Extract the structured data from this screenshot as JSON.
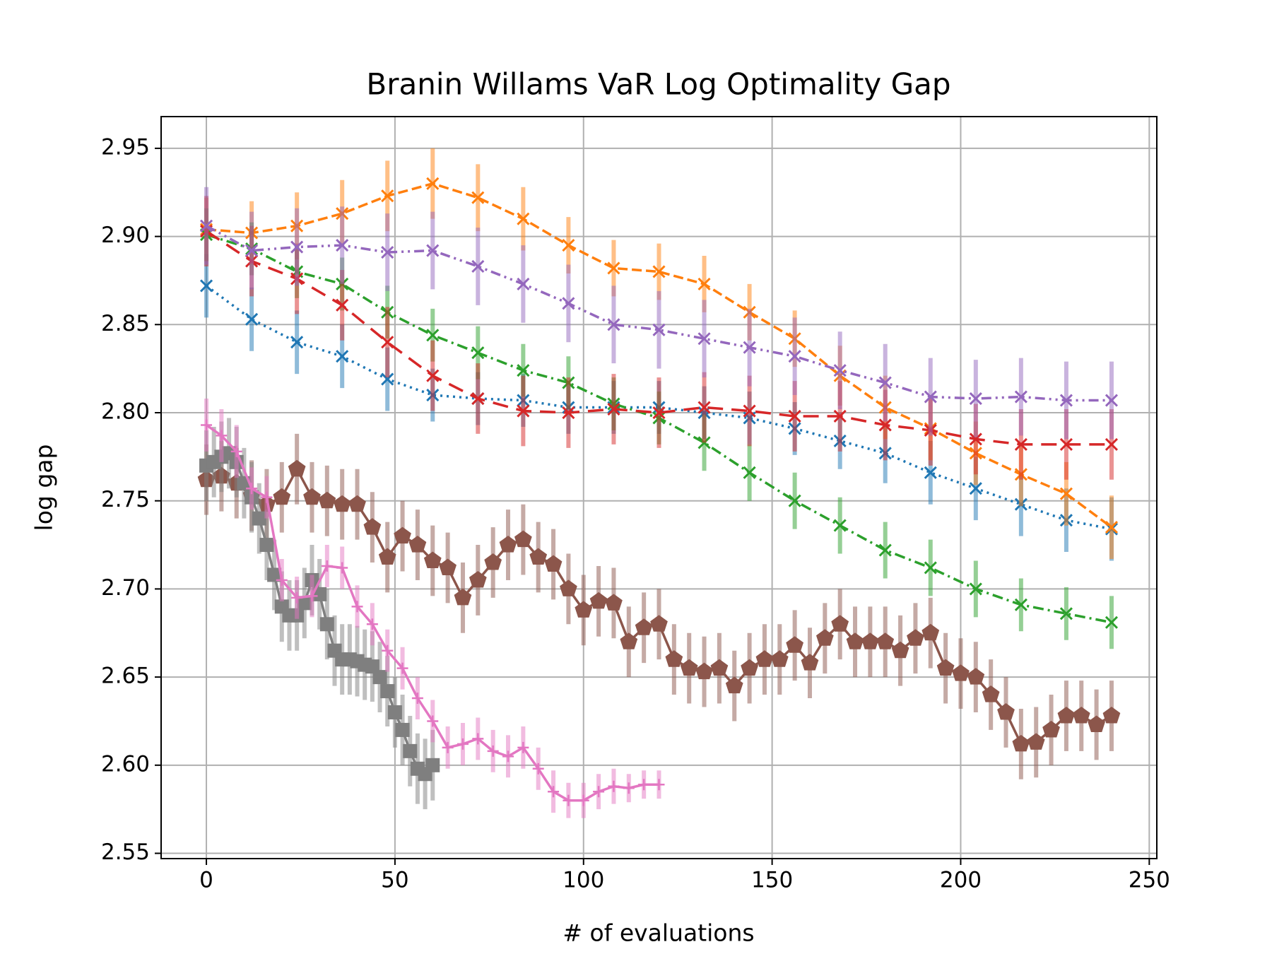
{
  "chart_data": {
    "type": "line",
    "title": "Branin Willams VaR Log Optimality Gap",
    "x_label": "# of evaluations",
    "y_label": "log gap",
    "xlim": [
      -12,
      252
    ],
    "ylim": [
      2.547,
      2.968
    ],
    "xticks": [
      0,
      50,
      100,
      150,
      200,
      250
    ],
    "yticks": [
      2.55,
      {
        "value": 2.6,
        "label": "2.60"
      },
      2.65,
      {
        "value": 2.7,
        "label": "2.70"
      },
      2.75,
      {
        "value": 2.8,
        "label": "2.80"
      },
      2.85,
      {
        "value": 2.9,
        "label": "2.90"
      },
      2.95
    ],
    "grid": true,
    "series": [
      {
        "color": "#1f77b4",
        "marker": "x",
        "linestyle": "dotted",
        "x": [
          0,
          12,
          24,
          36,
          48,
          60,
          72,
          84,
          96,
          108,
          120,
          132,
          144,
          156,
          168,
          180,
          192,
          204,
          216,
          228,
          240
        ],
        "values": [
          2.872,
          2.853,
          2.84,
          2.832,
          2.819,
          2.81,
          2.808,
          2.807,
          2.803,
          2.803,
          2.803,
          2.8,
          2.797,
          2.791,
          2.784,
          2.777,
          2.766,
          2.757,
          2.748,
          2.739,
          2.734
        ],
        "errors": [
          0.018,
          0.018,
          0.018,
          0.018,
          0.018,
          0.015,
          0.015,
          0.015,
          0.015,
          0.015,
          0.015,
          0.015,
          0.015,
          0.015,
          0.016,
          0.017,
          0.018,
          0.018,
          0.018,
          0.018,
          0.018
        ]
      },
      {
        "color": "#ff7f0e",
        "marker": "x",
        "linestyle": "dashed",
        "x": [
          0,
          12,
          24,
          36,
          48,
          60,
          72,
          84,
          96,
          108,
          120,
          132,
          144,
          156,
          168,
          180,
          192,
          204,
          216,
          228,
          240
        ],
        "values": [
          2.904,
          2.902,
          2.906,
          2.913,
          2.923,
          2.93,
          2.922,
          2.91,
          2.895,
          2.882,
          2.88,
          2.873,
          2.857,
          2.842,
          2.821,
          2.803,
          2.791,
          2.777,
          2.765,
          2.754,
          2.735
        ],
        "errors": [
          0.018,
          0.018,
          0.019,
          0.019,
          0.02,
          0.02,
          0.019,
          0.018,
          0.016,
          0.016,
          0.016,
          0.016,
          0.016,
          0.016,
          0.017,
          0.018,
          0.018,
          0.018,
          0.018,
          0.018,
          0.018
        ]
      },
      {
        "color": "#2ca02c",
        "marker": "x",
        "linestyle": "dashdot",
        "x": [
          0,
          12,
          24,
          36,
          48,
          60,
          72,
          84,
          96,
          108,
          120,
          132,
          144,
          156,
          168,
          180,
          192,
          204,
          216,
          228,
          240
        ],
        "values": [
          2.901,
          2.893,
          2.88,
          2.873,
          2.857,
          2.844,
          2.834,
          2.824,
          2.817,
          2.805,
          2.797,
          2.783,
          2.766,
          2.75,
          2.736,
          2.722,
          2.712,
          2.7,
          2.691,
          2.686,
          2.681
        ],
        "errors": [
          0.015,
          0.015,
          0.015,
          0.015,
          0.015,
          0.015,
          0.015,
          0.015,
          0.015,
          0.015,
          0.015,
          0.016,
          0.016,
          0.016,
          0.016,
          0.016,
          0.016,
          0.016,
          0.015,
          0.015,
          0.015
        ]
      },
      {
        "color": "#d62728",
        "marker": "x",
        "linestyle": "longdash",
        "x": [
          0,
          12,
          24,
          36,
          48,
          60,
          72,
          84,
          96,
          108,
          120,
          132,
          144,
          156,
          168,
          180,
          192,
          204,
          216,
          228,
          240
        ],
        "values": [
          2.903,
          2.886,
          2.876,
          2.861,
          2.84,
          2.821,
          2.808,
          2.801,
          2.8,
          2.802,
          2.8,
          2.803,
          2.801,
          2.798,
          2.798,
          2.793,
          2.79,
          2.785,
          2.782,
          2.782,
          2.782
        ],
        "errors": [
          0.02,
          0.02,
          0.02,
          0.02,
          0.02,
          0.02,
          0.02,
          0.02,
          0.02,
          0.02,
          0.02,
          0.02,
          0.02,
          0.02,
          0.02,
          0.02,
          0.02,
          0.02,
          0.02,
          0.02,
          0.02
        ]
      },
      {
        "color": "#9467bd",
        "marker": "x",
        "linestyle": "dashdotdot",
        "x": [
          0,
          12,
          24,
          36,
          48,
          60,
          72,
          84,
          96,
          108,
          120,
          132,
          144,
          156,
          168,
          180,
          192,
          204,
          216,
          228,
          240
        ],
        "values": [
          2.906,
          2.892,
          2.894,
          2.895,
          2.891,
          2.892,
          2.883,
          2.873,
          2.862,
          2.85,
          2.847,
          2.842,
          2.837,
          2.832,
          2.824,
          2.817,
          2.809,
          2.808,
          2.809,
          2.807,
          2.807
        ],
        "errors": [
          0.022,
          0.022,
          0.022,
          0.022,
          0.022,
          0.022,
          0.022,
          0.022,
          0.022,
          0.022,
          0.022,
          0.022,
          0.022,
          0.022,
          0.022,
          0.022,
          0.022,
          0.022,
          0.022,
          0.022,
          0.022
        ]
      },
      {
        "color": "#8c564b",
        "marker": "pentagon",
        "linestyle": "solid",
        "x": [
          0,
          4,
          8,
          12,
          16,
          20,
          24,
          28,
          32,
          36,
          40,
          44,
          48,
          52,
          56,
          60,
          64,
          68,
          72,
          76,
          80,
          84,
          88,
          92,
          96,
          100,
          104,
          108,
          112,
          116,
          120,
          124,
          128,
          132,
          136,
          140,
          144,
          148,
          152,
          156,
          160,
          164,
          168,
          172,
          176,
          180,
          184,
          188,
          192,
          196,
          200,
          204,
          208,
          212,
          216,
          220,
          224,
          228,
          232,
          236,
          240
        ],
        "values": [
          2.762,
          2.764,
          2.76,
          2.753,
          2.748,
          2.752,
          2.768,
          2.752,
          2.75,
          2.748,
          2.748,
          2.735,
          2.718,
          2.73,
          2.725,
          2.716,
          2.712,
          2.695,
          2.705,
          2.715,
          2.725,
          2.728,
          2.718,
          2.714,
          2.7,
          2.688,
          2.693,
          2.692,
          2.67,
          2.678,
          2.68,
          2.66,
          2.655,
          2.653,
          2.655,
          2.645,
          2.655,
          2.66,
          2.66,
          2.668,
          2.658,
          2.672,
          2.68,
          2.67,
          2.67,
          2.67,
          2.665,
          2.672,
          2.675,
          2.655,
          2.652,
          2.65,
          2.64,
          2.63,
          2.612,
          2.613,
          2.62,
          2.628,
          2.628,
          2.623,
          2.628
        ],
        "errors": [
          0.02,
          0.02,
          0.02,
          0.02,
          0.02,
          0.02,
          0.02,
          0.02,
          0.02,
          0.02,
          0.02,
          0.02,
          0.02,
          0.02,
          0.02,
          0.02,
          0.02,
          0.02,
          0.02,
          0.02,
          0.02,
          0.02,
          0.02,
          0.02,
          0.02,
          0.02,
          0.02,
          0.02,
          0.02,
          0.02,
          0.02,
          0.02,
          0.02,
          0.02,
          0.02,
          0.02,
          0.02,
          0.02,
          0.02,
          0.02,
          0.02,
          0.02,
          0.02,
          0.02,
          0.02,
          0.02,
          0.02,
          0.02,
          0.02,
          0.02,
          0.02,
          0.02,
          0.02,
          0.02,
          0.02,
          0.02,
          0.02,
          0.02,
          0.02,
          0.02,
          0.02
        ]
      },
      {
        "color": "#7f7f7f",
        "marker": "square",
        "linestyle": "solid",
        "x": [
          0,
          2,
          4,
          6,
          8,
          10,
          12,
          14,
          16,
          18,
          20,
          22,
          24,
          26,
          28,
          30,
          32,
          34,
          36,
          38,
          40,
          42,
          44,
          46,
          48,
          50,
          52,
          54,
          56,
          58,
          60
        ],
        "values": [
          2.77,
          2.772,
          2.775,
          2.777,
          2.772,
          2.76,
          2.752,
          2.74,
          2.725,
          2.708,
          2.69,
          2.685,
          2.685,
          2.692,
          2.705,
          2.697,
          2.68,
          2.665,
          2.66,
          2.66,
          2.659,
          2.657,
          2.656,
          2.65,
          2.642,
          2.63,
          2.62,
          2.608,
          2.598,
          2.595,
          2.6
        ],
        "errors": [
          0.02,
          0.02,
          0.02,
          0.02,
          0.02,
          0.02,
          0.02,
          0.02,
          0.02,
          0.02,
          0.02,
          0.02,
          0.02,
          0.02,
          0.02,
          0.02,
          0.02,
          0.02,
          0.02,
          0.02,
          0.02,
          0.02,
          0.02,
          0.02,
          0.02,
          0.02,
          0.02,
          0.02,
          0.02,
          0.02,
          0.02
        ]
      },
      {
        "color": "#e377c2",
        "marker": "plus",
        "linestyle": "solid",
        "x": [
          0,
          4,
          8,
          12,
          16,
          20,
          24,
          28,
          32,
          36,
          40,
          44,
          48,
          52,
          56,
          60,
          64,
          68,
          72,
          76,
          80,
          84,
          88,
          92,
          96,
          100,
          104,
          108,
          112,
          116,
          120
        ],
        "values": [
          2.793,
          2.787,
          2.778,
          2.757,
          2.752,
          2.705,
          2.695,
          2.696,
          2.713,
          2.712,
          2.69,
          2.68,
          2.665,
          2.655,
          2.638,
          2.625,
          2.61,
          2.612,
          2.615,
          2.608,
          2.605,
          2.61,
          2.598,
          2.585,
          2.58,
          2.58,
          2.585,
          2.588,
          2.587,
          2.589,
          2.589
        ],
        "errors": [
          0.015,
          0.015,
          0.015,
          0.012,
          0.012,
          0.012,
          0.012,
          0.012,
          0.012,
          0.012,
          0.012,
          0.012,
          0.012,
          0.012,
          0.012,
          0.012,
          0.012,
          0.012,
          0.012,
          0.012,
          0.012,
          0.012,
          0.012,
          0.012,
          0.01,
          0.01,
          0.01,
          0.01,
          0.008,
          0.008,
          0.008
        ]
      }
    ]
  }
}
